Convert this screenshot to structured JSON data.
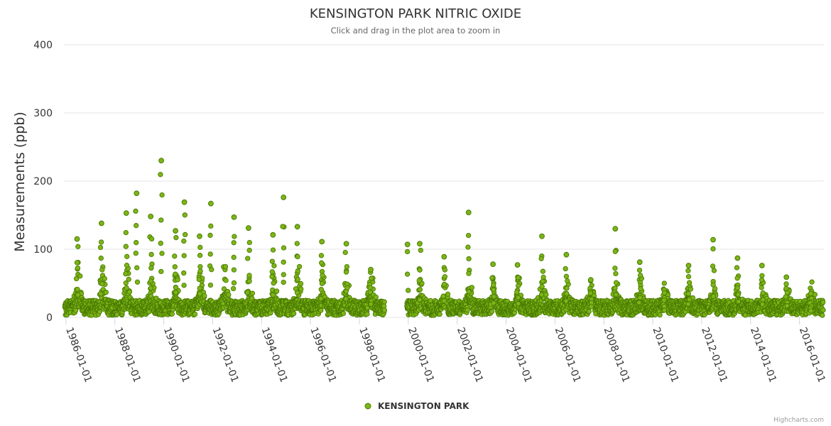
{
  "chart_data": {
    "type": "scatter",
    "title": "KENSINGTON PARK NITRIC OXIDE",
    "subtitle": "Click and drag in the plot area to zoom in",
    "xlabel": "",
    "ylabel": "Measurements (ppb)",
    "ylim": [
      0,
      400
    ],
    "yticks": [
      "0",
      "100",
      "200",
      "300",
      "400"
    ],
    "xlim": [
      "1985-12-01",
      "2016-12-31"
    ],
    "xticks": [
      "1986-01-01",
      "1988-01-01",
      "1990-01-01",
      "1992-01-01",
      "1994-01-01",
      "1996-01-01",
      "1998-01-01",
      "2000-01-01",
      "2002-01-01",
      "2004-01-01",
      "2006-01-01",
      "2008-01-01",
      "2010-01-01",
      "2012-01-01",
      "2014-01-01",
      "2016-01-01"
    ],
    "grid": true,
    "legend_position": "bottom-center",
    "series": [
      {
        "name": "KENSINGTON PARK",
        "color": "#7cb518",
        "marker_stroke": "#4a7a00",
        "data_gap": [
          "1999-01-15",
          "1999-12-10"
        ],
        "yearly_peaks": [
          {
            "x": "1986-06-15",
            "y": 115
          },
          {
            "x": "1987-06-15",
            "y": 138
          },
          {
            "x": "1988-06-20",
            "y": 153
          },
          {
            "x": "1988-11-20",
            "y": 182
          },
          {
            "x": "1989-06-20",
            "y": 148
          },
          {
            "x": "1989-11-25",
            "y": 230
          },
          {
            "x": "1990-06-25",
            "y": 127
          },
          {
            "x": "1990-11-05",
            "y": 169
          },
          {
            "x": "1991-06-20",
            "y": 119
          },
          {
            "x": "1991-12-05",
            "y": 167
          },
          {
            "x": "1992-11-15",
            "y": 147
          },
          {
            "x": "1993-06-20",
            "y": 131
          },
          {
            "x": "1994-06-20",
            "y": 121
          },
          {
            "x": "1994-11-25",
            "y": 176
          },
          {
            "x": "1995-06-20",
            "y": 133
          },
          {
            "x": "1996-06-20",
            "y": 111
          },
          {
            "x": "1997-06-20",
            "y": 108
          },
          {
            "x": "1998-06-20",
            "y": 70
          },
          {
            "x": "1999-12-20",
            "y": 107
          },
          {
            "x": "2000-06-20",
            "y": 108
          },
          {
            "x": "2001-06-20",
            "y": 89
          },
          {
            "x": "2002-06-20",
            "y": 154
          },
          {
            "x": "2003-06-20",
            "y": 78
          },
          {
            "x": "2004-06-20",
            "y": 77
          },
          {
            "x": "2005-06-20",
            "y": 119
          },
          {
            "x": "2006-06-20",
            "y": 92
          },
          {
            "x": "2007-06-20",
            "y": 55
          },
          {
            "x": "2008-06-20",
            "y": 130
          },
          {
            "x": "2009-06-20",
            "y": 81
          },
          {
            "x": "2010-06-20",
            "y": 40
          },
          {
            "x": "2011-06-20",
            "y": 76
          },
          {
            "x": "2012-06-20",
            "y": 114
          },
          {
            "x": "2013-06-20",
            "y": 87
          },
          {
            "x": "2014-06-20",
            "y": 76
          },
          {
            "x": "2015-06-20",
            "y": 59
          },
          {
            "x": "2016-06-20",
            "y": 35
          }
        ]
      }
    ]
  },
  "legend": {
    "label": "KENSINGTON PARK"
  },
  "credits": {
    "label": "Highcharts.com"
  }
}
